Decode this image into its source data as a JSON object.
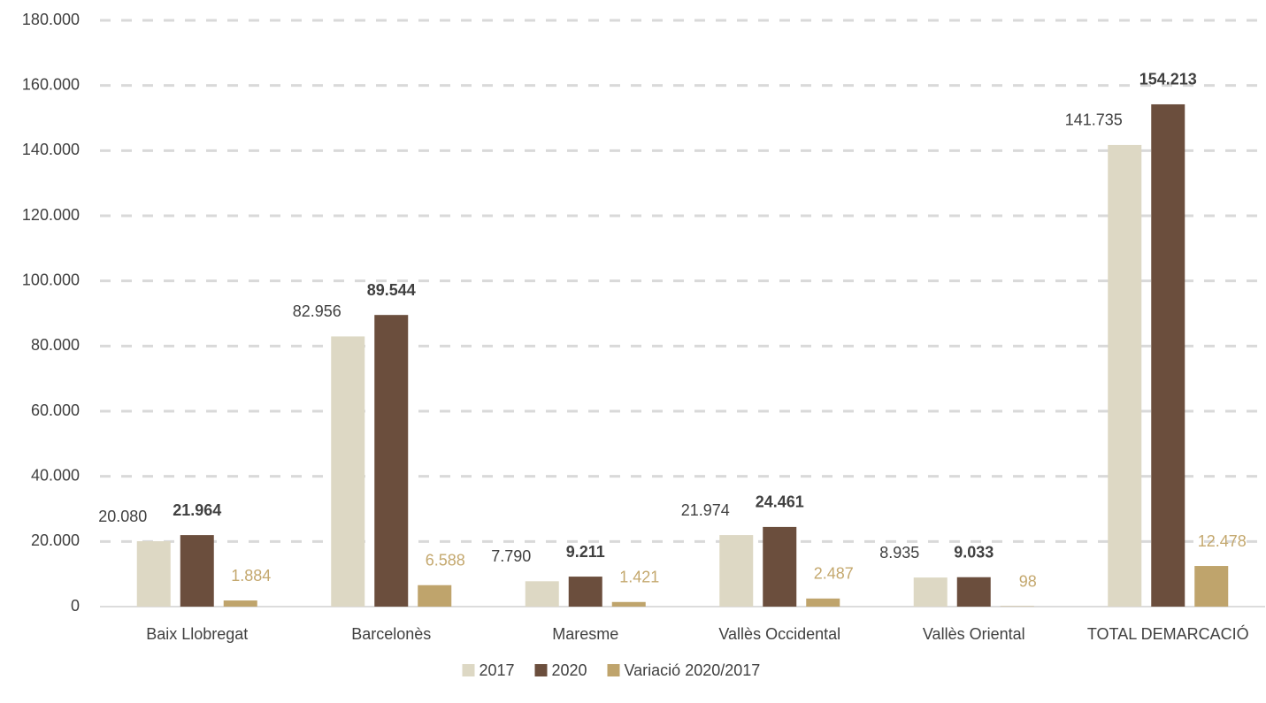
{
  "chart_data": {
    "type": "bar",
    "categories": [
      "Baix Llobregat",
      "Barcelonès",
      "Maresme",
      "Vallès Occidental",
      "Vallès Oriental",
      "TOTAL DEMARCACIÓ"
    ],
    "series": [
      {
        "name": "2017",
        "color": "#ddd8c4",
        "values": [
          20080,
          82956,
          7790,
          21974,
          8935,
          141735
        ],
        "value_labels": [
          "20.080",
          "82.956",
          "7.790",
          "21.974",
          "8.935",
          "141.735"
        ]
      },
      {
        "name": "2020",
        "color": "#6b4e3d",
        "values": [
          21964,
          89544,
          9211,
          24461,
          9033,
          154213
        ],
        "value_labels": [
          "21.964",
          "89.544",
          "9.211",
          "24.461",
          "9.033",
          "154.213"
        ]
      },
      {
        "name": "Variació 2020/2017",
        "color": "#bfa46c",
        "values": [
          1884,
          6588,
          1421,
          2487,
          98,
          12478
        ],
        "value_labels": [
          "1.884",
          "6.588",
          "1.421",
          "2.487",
          "98",
          "12.478"
        ]
      }
    ],
    "ylim": [
      0,
      180000
    ],
    "yticks": [
      0,
      {
        "value": 20000,
        "label": "20.000"
      },
      {
        "value": 40000,
        "label": "40.000"
      },
      {
        "value": 60000,
        "label": "60.000"
      },
      {
        "value": 80000,
        "label": "80.000"
      },
      {
        "value": 100000,
        "label": "100.000"
      },
      {
        "value": 120000,
        "label": "120.000"
      },
      {
        "value": 140000,
        "label": "140.000"
      },
      {
        "value": 160000,
        "label": "160.000"
      },
      {
        "value": 180000,
        "label": "180.000"
      }
    ],
    "grid": true,
    "legend": "bottom"
  }
}
